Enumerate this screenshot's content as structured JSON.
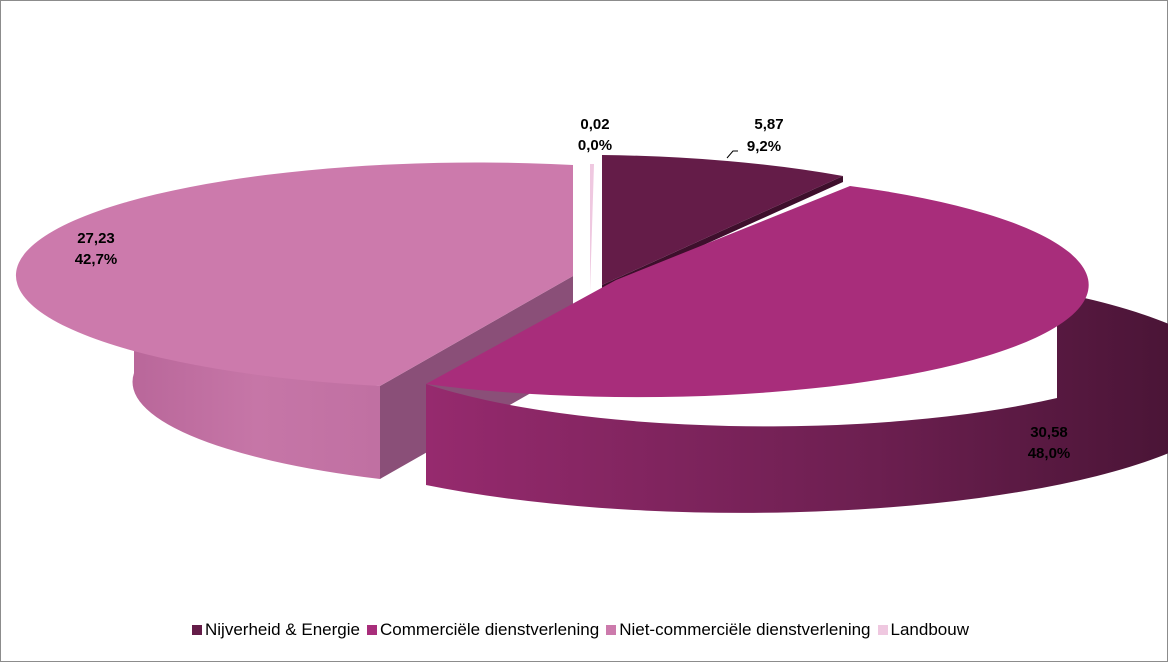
{
  "chart_data": {
    "type": "pie",
    "style": "3d-exploded",
    "slices": [
      {
        "name": "Nijverheid & Energie",
        "value": 5.87,
        "value_label": "5,87",
        "percent": 9.2,
        "percent_label": "9,2%",
        "color": "#641C48"
      },
      {
        "name": "Commerciële dienstverlening",
        "value": 30.58,
        "value_label": "30,58",
        "percent": 48.0,
        "percent_label": "48,0%",
        "color": "#A82D7B"
      },
      {
        "name": "Niet-commerciële dienstverlening",
        "value": 27.23,
        "value_label": "27,23",
        "percent": 42.7,
        "percent_label": "42,7%",
        "color": "#CC7AAC"
      },
      {
        "name": "Landbouw",
        "value": 0.02,
        "value_label": "0,02",
        "percent": 0.0,
        "percent_label": "0,0%",
        "color": "#EFC8E0"
      }
    ],
    "legend_position": "bottom"
  }
}
